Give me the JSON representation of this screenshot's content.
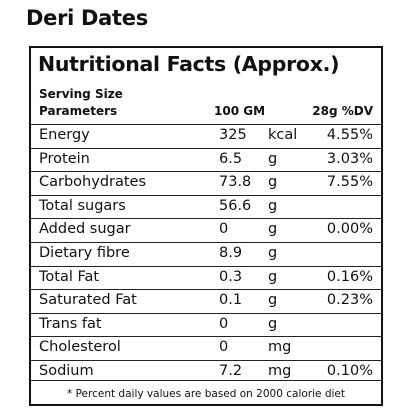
{
  "product": {
    "title": "Deri Dates"
  },
  "panel": {
    "title": "Nutritional Facts (Approx.)",
    "serving_label": "Serving Size",
    "headers": {
      "parameters": "Parameters",
      "per_100": "100 GM",
      "dv": "28g %DV"
    },
    "rows": [
      {
        "name": "Energy",
        "value": "325",
        "unit": "kcal",
        "dv": "4.55%"
      },
      {
        "name": "Protein",
        "value": "6.5",
        "unit": "g",
        "dv": "3.03%"
      },
      {
        "name": "Carbohydrates",
        "value": "73.8",
        "unit": "g",
        "dv": "7.55%"
      },
      {
        "name": "Total sugars",
        "value": "56.6",
        "unit": "g",
        "dv": ""
      },
      {
        "name": "Added sugar",
        "value": "0",
        "unit": "g",
        "dv": "0.00%"
      },
      {
        "name": "Dietary fibre",
        "value": "8.9",
        "unit": "g",
        "dv": ""
      },
      {
        "name": "Total Fat",
        "value": "0.3",
        "unit": "g",
        "dv": "0.16%"
      },
      {
        "name": "Saturated Fat",
        "value": "0.1",
        "unit": "g",
        "dv": "0.23%"
      },
      {
        "name": "Trans fat",
        "value": "0",
        "unit": "g",
        "dv": ""
      },
      {
        "name": "Cholesterol",
        "value": "0",
        "unit": "mg",
        "dv": ""
      },
      {
        "name": "Sodium",
        "value": "7.2",
        "unit": "mg",
        "dv": "0.10%"
      }
    ],
    "footnote": "* Percent daily values are based on 2000 calorie diet"
  }
}
